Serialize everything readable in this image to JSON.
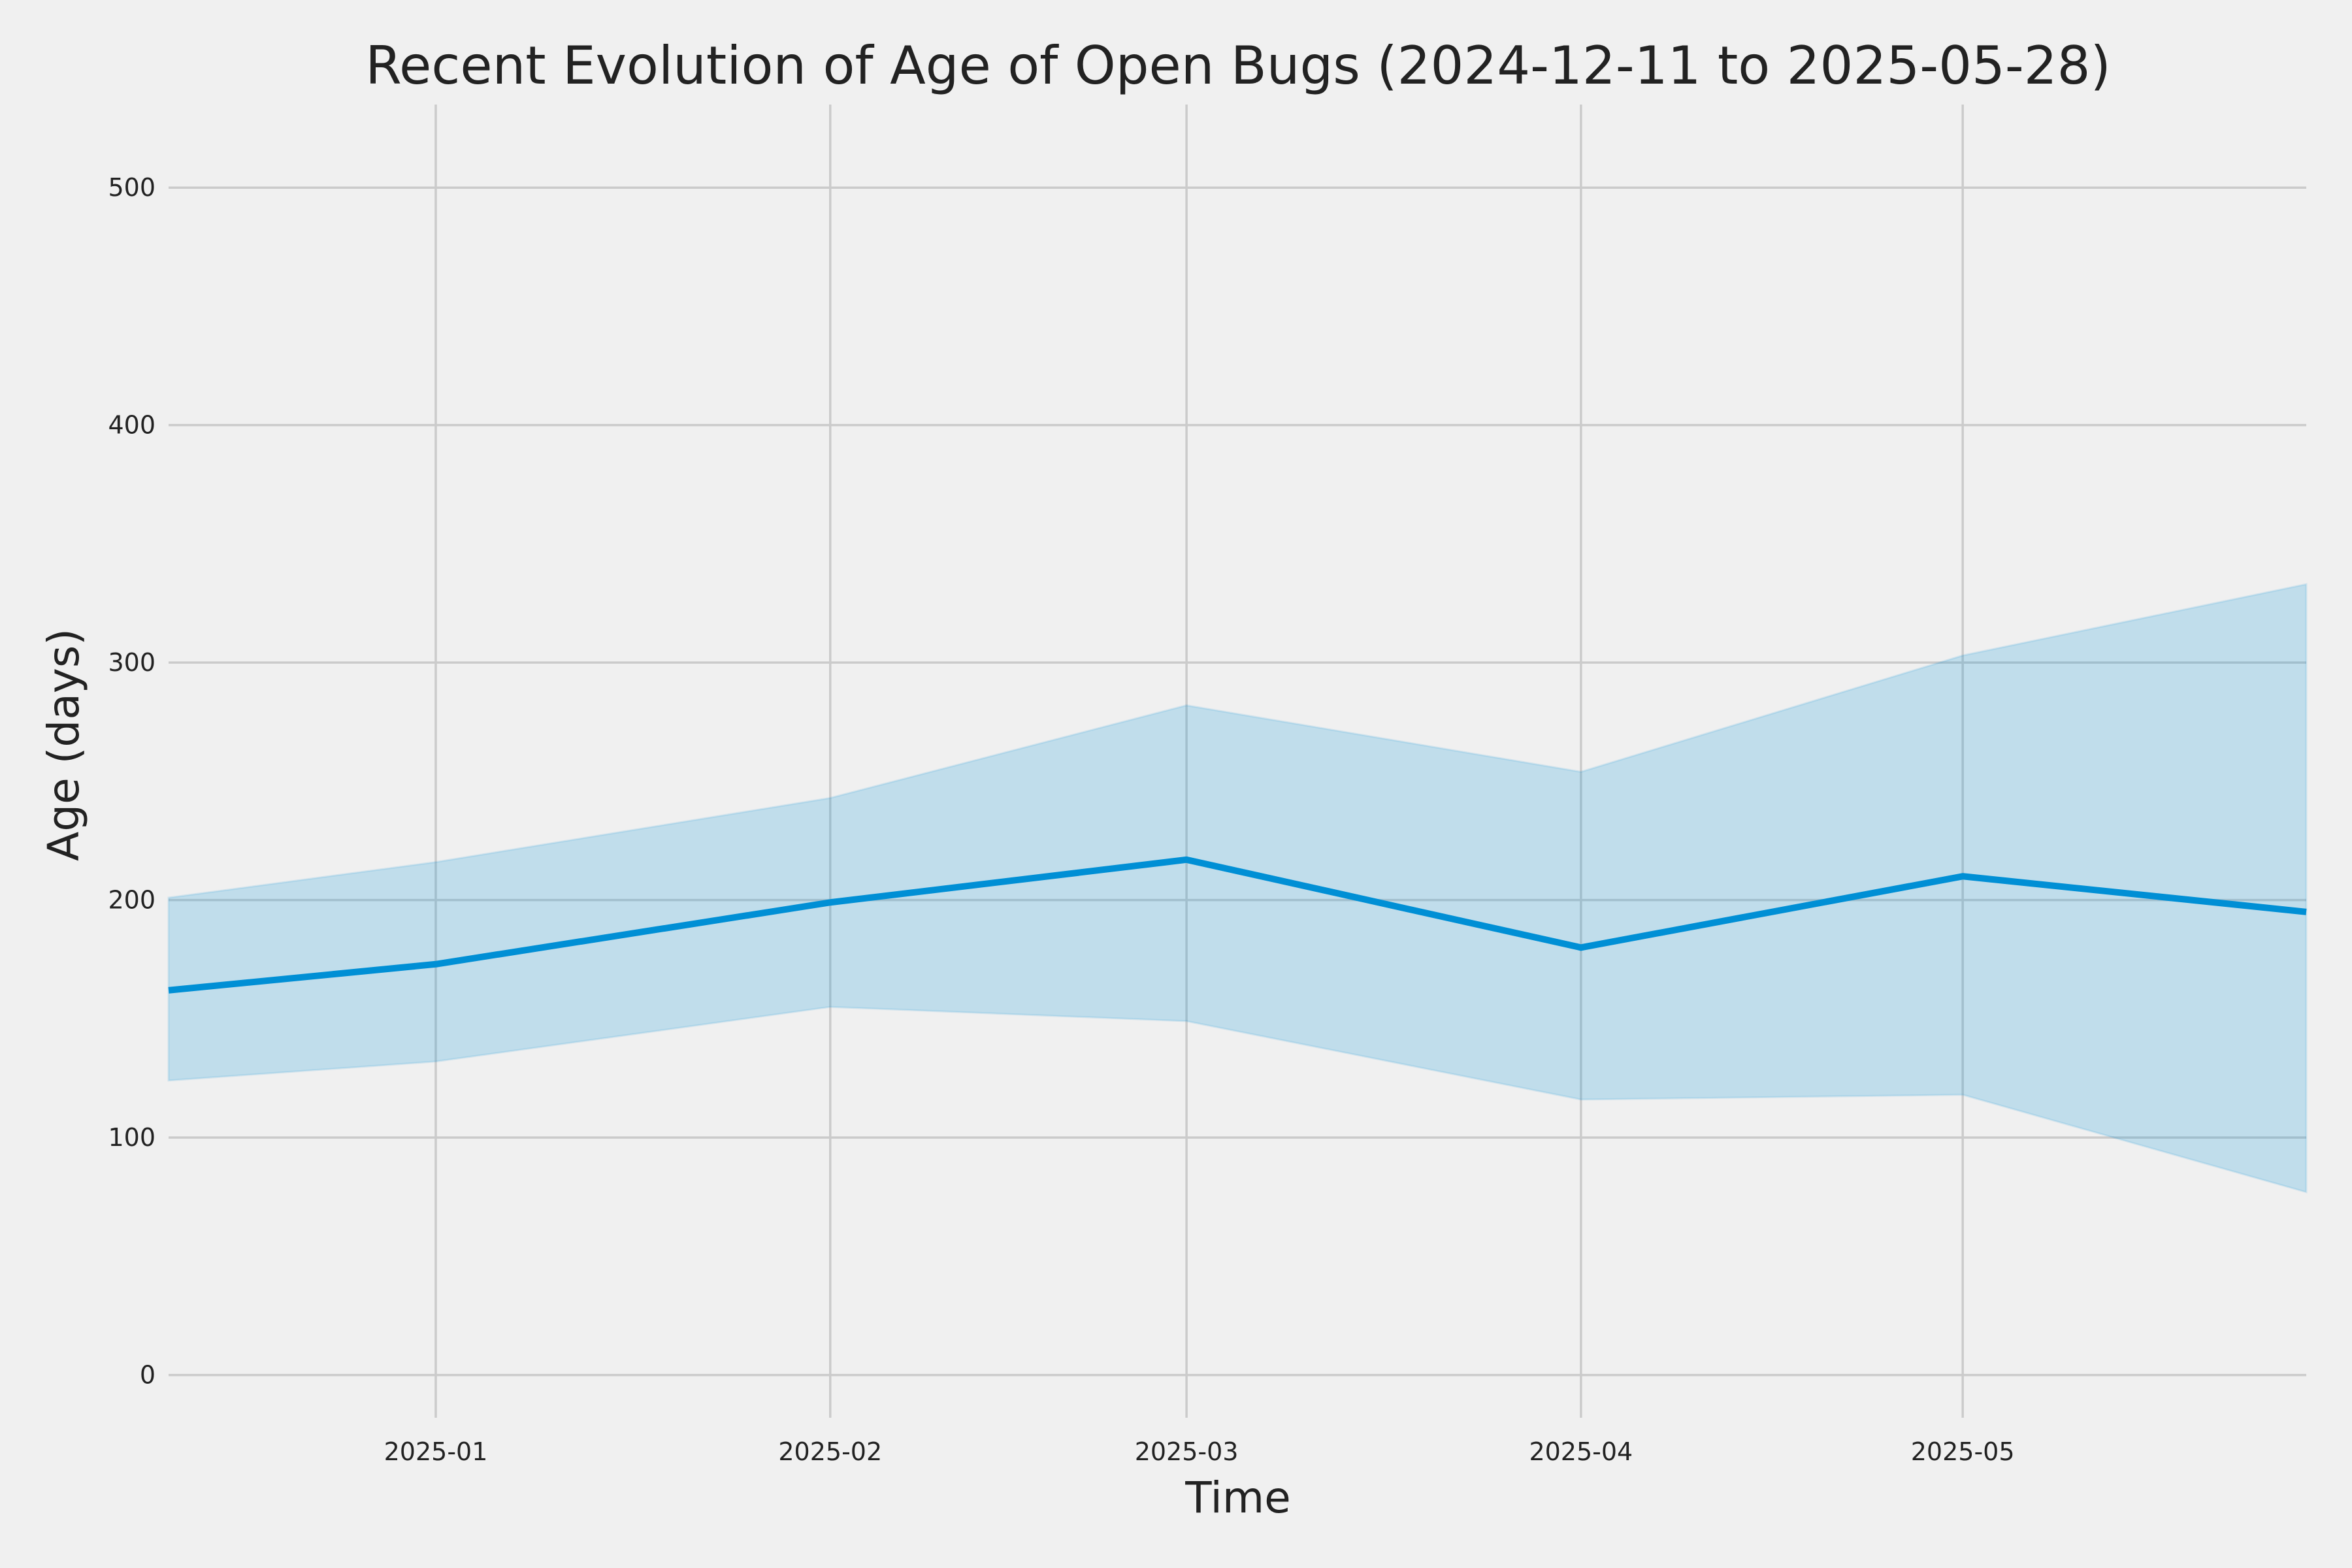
{
  "chart_data": {
    "type": "line",
    "title": "Recent Evolution of Age of Open Bugs (2024-12-11 to 2025-05-28)",
    "xlabel": "Time",
    "ylabel": "Age (days)",
    "xlim": [
      "2024-12-11",
      "2025-05-28"
    ],
    "ylim": [
      -18,
      535
    ],
    "x_ticks": [
      "2025-01-01",
      "2025-02-01",
      "2025-03-01",
      "2025-04-01",
      "2025-05-01"
    ],
    "x_tick_labels": [
      "2025-01",
      "2025-02",
      "2025-03",
      "2025-04",
      "2025-05"
    ],
    "y_ticks": [
      0,
      100,
      200,
      300,
      400,
      500
    ],
    "grid": true,
    "colors": {
      "background": "#f0f0f0",
      "line": "#008fd5",
      "band": "#008fd5",
      "grid": "#cbcbcb",
      "text": "#222222"
    },
    "x": [
      "2024-12-11",
      "2025-01-01",
      "2025-02-01",
      "2025-03-01",
      "2025-04-01",
      "2025-05-01",
      "2025-05-28"
    ],
    "series": [
      {
        "values": [
          162,
          173,
          199,
          217,
          180,
          210,
          195
        ],
        "band_lower": [
          124,
          132,
          155,
          149,
          116,
          118,
          77
        ],
        "band_upper": [
          201,
          216,
          243,
          282,
          254,
          303,
          333
        ]
      }
    ]
  }
}
